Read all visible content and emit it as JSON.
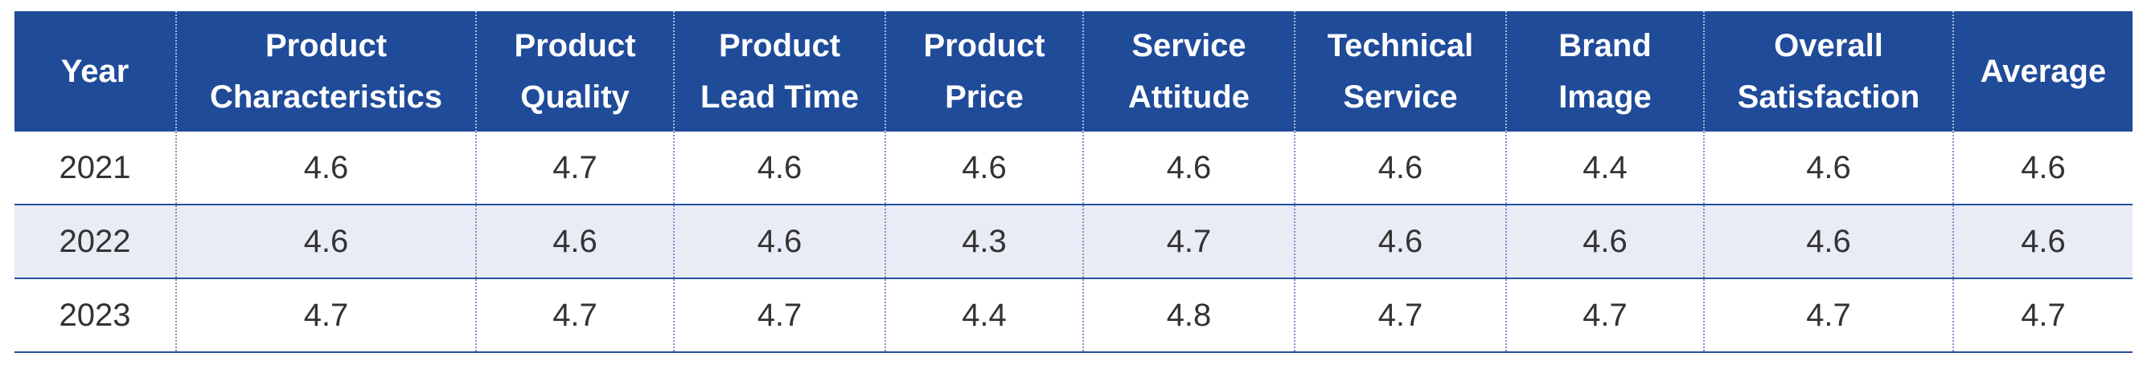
{
  "table": {
    "headers": [
      [
        "Year"
      ],
      [
        "Product",
        "Characteristics"
      ],
      [
        "Product",
        "Quality"
      ],
      [
        "Product",
        "Lead Time"
      ],
      [
        "Product",
        "Price"
      ],
      [
        "Service",
        "Attitude"
      ],
      [
        "Technical",
        "Service"
      ],
      [
        "Brand",
        "Image"
      ],
      [
        "Overall",
        "Satisfaction"
      ],
      [
        "Average"
      ]
    ],
    "rows": [
      [
        "2021",
        "4.6",
        "4.7",
        "4.6",
        "4.6",
        "4.6",
        "4.6",
        "4.4",
        "4.6",
        "4.6"
      ],
      [
        "2022",
        "4.6",
        "4.6",
        "4.6",
        "4.3",
        "4.7",
        "4.6",
        "4.6",
        "4.6",
        "4.6"
      ],
      [
        "2023",
        "4.7",
        "4.7",
        "4.7",
        "4.4",
        "4.8",
        "4.7",
        "4.7",
        "4.7",
        "4.7"
      ]
    ]
  },
  "colors": {
    "header_bg": "#1f4b99",
    "alt_row_bg": "#e9ebf5",
    "rule": "#2a4f9a"
  }
}
